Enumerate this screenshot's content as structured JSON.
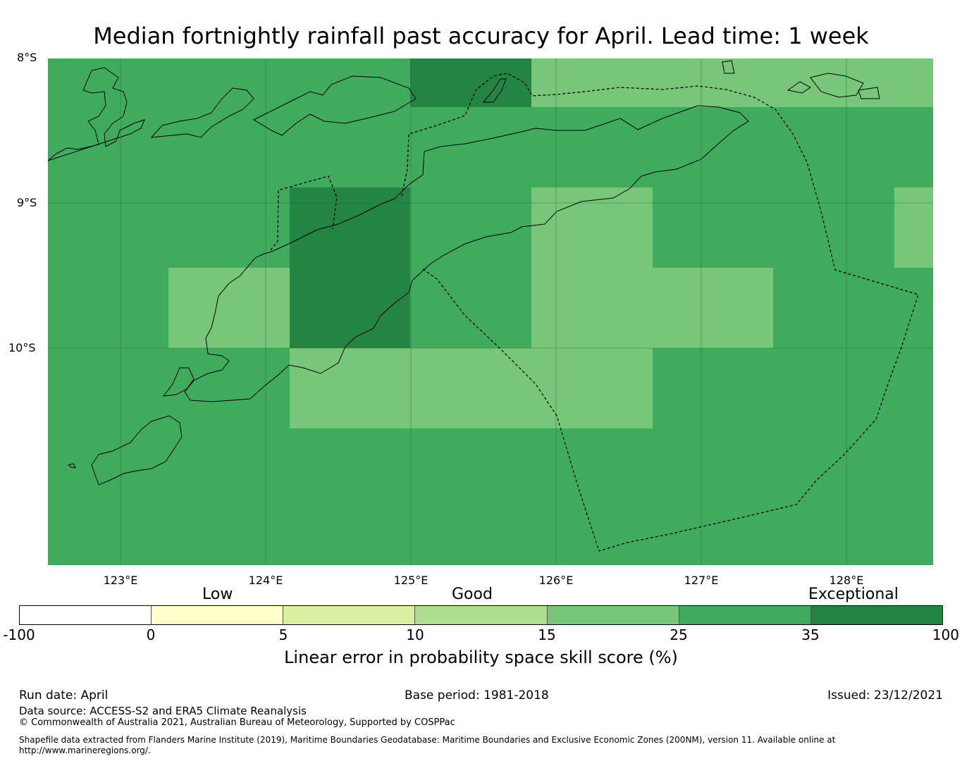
{
  "title": "Median fortnightly rainfall past accuracy for April. Lead time: 1 week",
  "map": {
    "lat_labels": [
      "8°S",
      "9°S",
      "10°S"
    ],
    "lon_labels": [
      "123°E",
      "124°E",
      "125°E",
      "126°E",
      "127°E",
      "128°E"
    ],
    "colors": {
      "good": "#78c679",
      "very_good": "#41ab5d",
      "exceptional": "#238443"
    }
  },
  "legend": {
    "categories": [
      "Low",
      "Good",
      "Exceptional"
    ],
    "ticks": [
      "-100",
      "0",
      "5",
      "10",
      "15",
      "25",
      "35",
      "100"
    ],
    "colors": [
      "#ffffff",
      "#ffffcc",
      "#d9f0a3",
      "#addd8e",
      "#78c679",
      "#41ab5d",
      "#238443"
    ],
    "title": "Linear error in probability space skill score (%)"
  },
  "footer": {
    "run_date": "Run date: April",
    "base_period": "Base period: 1981-2018",
    "issued": "Issued: 23/12/2021",
    "data_source": "Data source: ACCESS-S2 and ERA5 Climate Reanalysis",
    "copyright": "© Commonwealth of Australia 2021, Australian Bureau of Meteorology, Supported by COSPPac",
    "shapefile": "Shapefile data extracted from Flanders Marine Institute (2019), Maritime Boundaries Geodatabase: Maritime Boundaries and Exclusive Economic Zones (200NM), version 11. Available online at http://www.marineregions.org/."
  }
}
